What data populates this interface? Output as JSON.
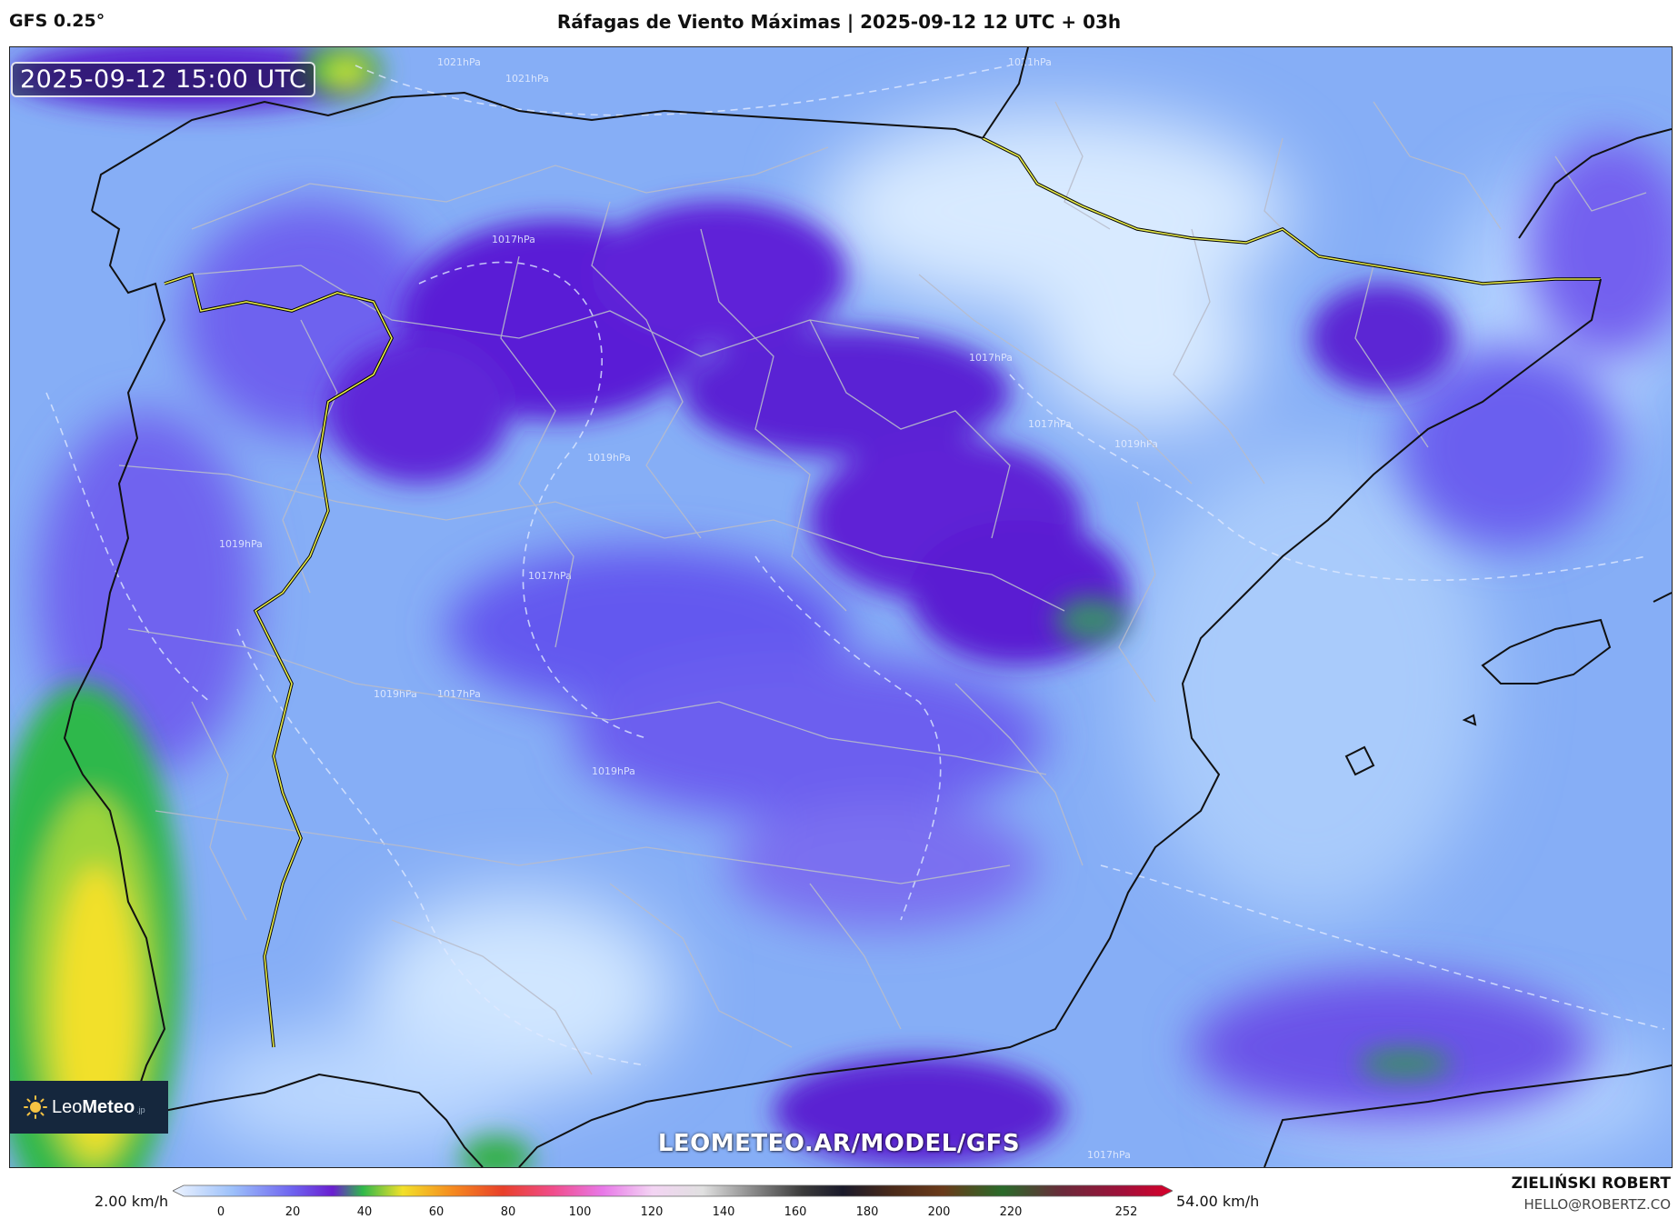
{
  "header": {
    "model": "GFS 0.25°",
    "title": "Ráfagas de Viento Máximas | 2025-09-12 12 UTC + 03h"
  },
  "map": {
    "timestamp": "2025-09-12 15:00 UTC",
    "watermark": "LEOMETEO.AR/MODEL/GFS",
    "isobar_labels": [
      "1021hPa",
      "1021hPa",
      "1021hPa",
      "1017hPa",
      "1017hPa",
      "1017hPa",
      "1019hPa",
      "1019hPa",
      "1017hPa",
      "1019hPa",
      "1017hPa",
      "1019hPa",
      "1019hPa",
      "1017hPa"
    ],
    "colors": {
      "low": "#c8e0ff",
      "mid": "#6a5cf0",
      "high": "#6a1fd0",
      "ocean_strong": "#f2e02a"
    }
  },
  "logo": {
    "brand_light": "Leo",
    "brand_bold": "Meteo",
    "suffix": ".jp"
  },
  "legend": {
    "min_label": "2.00 km/h",
    "max_label": "54.00 km/h",
    "ticks": [
      "0",
      "20",
      "40",
      "60",
      "80",
      "100",
      "120",
      "140",
      "160",
      "180",
      "200",
      "220",
      "252"
    ]
  },
  "credits": {
    "author": "ZIELIŃSKI ROBERT",
    "email": "HELLO@ROBERTZ.CO"
  }
}
